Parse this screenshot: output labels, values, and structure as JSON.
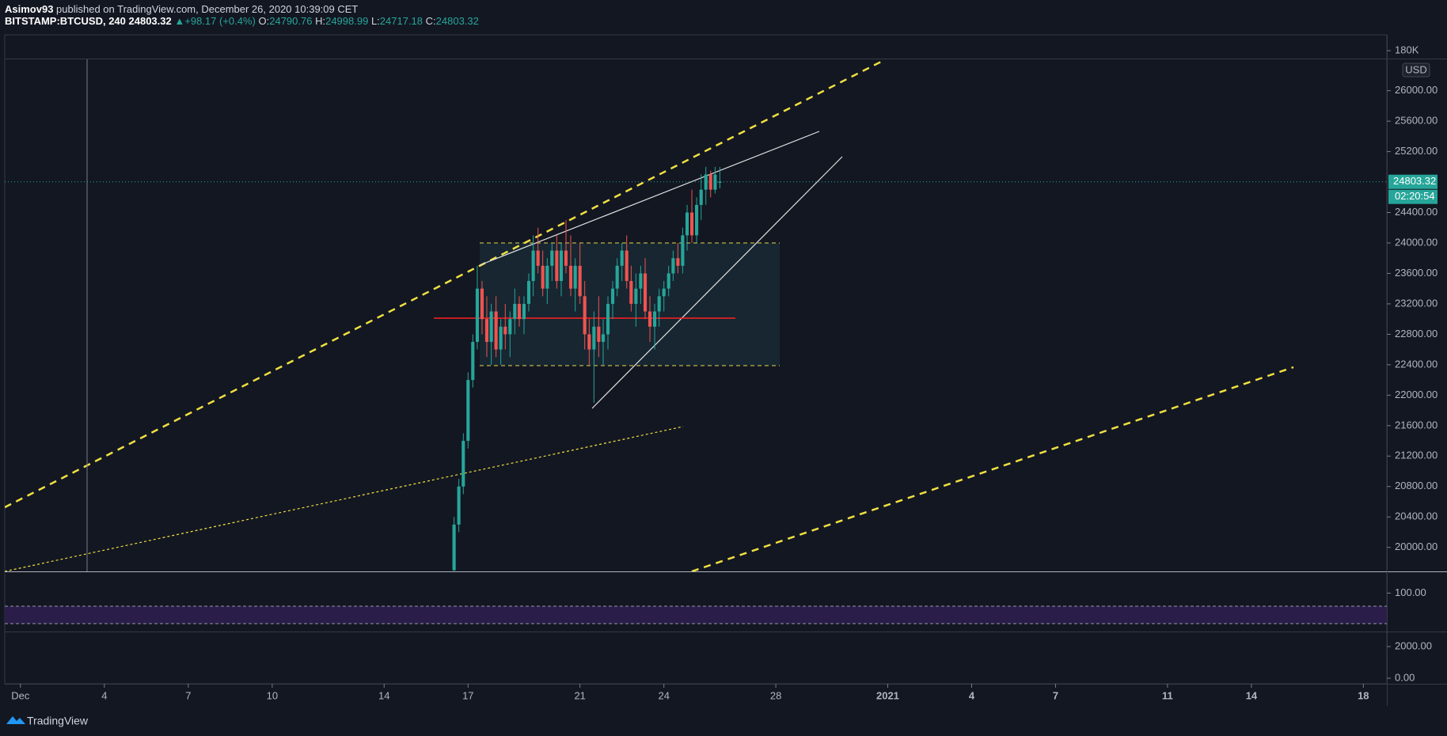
{
  "header": {
    "author": "Asimov93",
    "published": " published on TradingView.com, December 26, 2020 10:39:09 CET",
    "symbol": "BITSTAMP:BTCUSD, 240",
    "change": "+98.17 (+0.4%)",
    "open_label": "O:",
    "high_label": "H:",
    "low_label": "L:",
    "close_label": "C:"
  },
  "chart_data": {
    "type": "candlestick",
    "currency": "USD",
    "countdown": "02:20:54",
    "up_color": "#26a69a",
    "down_color": "#ef5350",
    "x": [
      16.5,
      16.67,
      16.83,
      17.0,
      17.17,
      17.33,
      17.5,
      17.67,
      17.83,
      18.0,
      18.17,
      18.33,
      18.5,
      18.67,
      18.83,
      19.0,
      19.17,
      19.33,
      19.5,
      19.67,
      19.83,
      20.0,
      20.17,
      20.33,
      20.5,
      20.67,
      20.83,
      21.0,
      21.17,
      21.33,
      21.5,
      21.67,
      21.83,
      22.0,
      22.17,
      22.33,
      22.5,
      22.67,
      22.83,
      23.0,
      23.17,
      23.33,
      23.5,
      23.67,
      23.83,
      24.0,
      24.17,
      24.33,
      24.5,
      24.67,
      24.83,
      25.0,
      25.17,
      25.33,
      25.5,
      25.67,
      25.83,
      26.0
    ],
    "open": [
      19700,
      20300,
      20800,
      21400,
      22200,
      22700,
      23400,
      23000,
      22700,
      23100,
      22600,
      22900,
      22800,
      23000,
      23200,
      23000,
      23200,
      23500,
      23900,
      23700,
      23400,
      23700,
      23900,
      23500,
      23900,
      23700,
      23400,
      23700,
      23300,
      22800,
      22600,
      22900,
      22700,
      22800,
      23200,
      23400,
      23700,
      23900,
      23500,
      23200,
      23400,
      23600,
      23100,
      22900,
      23100,
      23300,
      23400,
      23600,
      23800,
      23700,
      24100,
      24400,
      24100,
      24500,
      24700,
      24900,
      24700,
      24790.76
    ],
    "high": [
      20400,
      20900,
      21500,
      22300,
      22800,
      23700,
      23500,
      23300,
      23200,
      23300,
      23000,
      23200,
      23100,
      23400,
      23300,
      23300,
      23600,
      24100,
      24200,
      23900,
      23800,
      24000,
      24100,
      24000,
      24300,
      24100,
      23800,
      24000,
      23500,
      23000,
      23100,
      23300,
      23000,
      23300,
      23500,
      23800,
      24000,
      24100,
      23700,
      23600,
      23700,
      23800,
      23300,
      23200,
      23400,
      23500,
      23700,
      23900,
      24000,
      24200,
      24500,
      24700,
      24600,
      24900,
      25000,
      24950,
      24999,
      24998.99
    ],
    "low": [
      19690,
      20200,
      20700,
      21300,
      22100,
      22600,
      22800,
      22500,
      22400,
      22500,
      22400,
      22600,
      22500,
      22800,
      22900,
      22800,
      23100,
      23300,
      23600,
      23300,
      23200,
      23500,
      23400,
      23300,
      23600,
      23300,
      23100,
      23200,
      22600,
      22400,
      21900,
      22500,
      22400,
      22600,
      23000,
      23300,
      23500,
      23400,
      23100,
      22900,
      23200,
      23000,
      22700,
      22600,
      22900,
      23100,
      23300,
      23500,
      23600,
      23600,
      23900,
      24000,
      24000,
      24300,
      24500,
      24600,
      24650,
      24717.18
    ],
    "close": [
      20300,
      20800,
      21400,
      22200,
      22700,
      23400,
      23000,
      22700,
      23100,
      22600,
      22900,
      22800,
      23000,
      23200,
      23000,
      23200,
      23500,
      23900,
      23700,
      23400,
      23700,
      23900,
      23500,
      23900,
      23700,
      23400,
      23700,
      23300,
      22800,
      22600,
      22900,
      22700,
      22800,
      23200,
      23400,
      23700,
      23900,
      23500,
      23200,
      23400,
      23600,
      23100,
      22900,
      23100,
      23300,
      23400,
      23600,
      23800,
      23700,
      24100,
      24400,
      24100,
      24500,
      24700,
      24900,
      24700,
      24900,
      24803.32
    ],
    "xlim": [
      0.44,
      49.84
    ],
    "xticks": [
      {
        "value": 1,
        "label": "Dec"
      },
      4,
      7,
      10,
      14,
      17,
      21,
      24,
      28,
      {
        "value": 32,
        "label": "2021"
      },
      {
        "value": 35,
        "label": "4"
      },
      {
        "value": 38,
        "label": "7"
      },
      {
        "value": 42,
        "label": "11"
      },
      {
        "value": 45,
        "label": "14"
      },
      {
        "value": 49,
        "label": "18"
      }
    ],
    "ylim": [
      19685,
      26412
    ],
    "yticks": [
      {
        "value": 20000,
        "label": "20000.00"
      },
      {
        "value": 20400,
        "label": "20400.00"
      },
      {
        "value": 20800,
        "label": "20800.00"
      },
      {
        "value": 21200,
        "label": "21200.00"
      },
      {
        "value": 21600,
        "label": "21600.00"
      },
      {
        "value": 22000,
        "label": "22000.00"
      },
      {
        "value": 22400,
        "label": "22400.00"
      },
      {
        "value": 22800,
        "label": "22800.00"
      },
      {
        "value": 23200,
        "label": "23200.00"
      },
      {
        "value": 23600,
        "label": "23600.00"
      },
      {
        "value": 24000,
        "label": "24000.00"
      },
      {
        "value": 24400,
        "label": "24400.00"
      },
      {
        "value": 25200,
        "label": "25200.00"
      },
      {
        "value": 25600,
        "label": "25600.00"
      },
      {
        "value": 26000,
        "label": "26000.00"
      }
    ]
  },
  "indicators": {
    "top": {
      "ylim": [
        165000,
        210000
      ],
      "yticks": [
        {
          "value": 180000,
          "label": "180K"
        }
      ]
    },
    "rsi": {
      "ylim": [
        14,
        146
      ],
      "yticks": [
        {
          "value": 100,
          "label": "100.00"
        }
      ]
    },
    "macd": {
      "ylim": [
        -300,
        2850
      ],
      "yticks": [
        {
          "value": 2000,
          "label": "2000.00"
        },
        {
          "value": 0,
          "label": "0.00"
        }
      ]
    }
  },
  "footer": {
    "brand": "TradingView"
  }
}
